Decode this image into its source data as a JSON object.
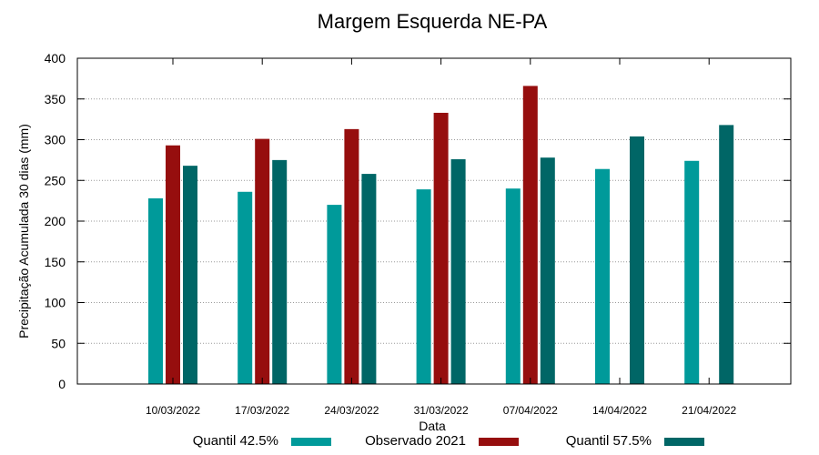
{
  "chart_data": {
    "type": "bar",
    "title": "Margem Esquerda NE-PA",
    "xlabel": "Data",
    "ylabel": "Precipitação Acumulada 30 dias (mm)",
    "ylim": [
      0,
      400
    ],
    "yticks": [
      0,
      50,
      100,
      150,
      200,
      250,
      300,
      350,
      400
    ],
    "grid": true,
    "legend_position": "bottom",
    "categories": [
      "10/03/2022",
      "17/03/2022",
      "24/03/2022",
      "31/03/2022",
      "07/04/2022",
      "14/04/2022",
      "21/04/2022"
    ],
    "series": [
      {
        "name": "Quantil 42.5%",
        "color": "#009a9a",
        "values": [
          228,
          236,
          220,
          239,
          240,
          264,
          274
        ]
      },
      {
        "name": "Observado 2021",
        "color": "#960e0e",
        "values": [
          293,
          301,
          313,
          333,
          366,
          null,
          null
        ]
      },
      {
        "name": "Quantil 57.5%",
        "color": "#006666",
        "values": [
          268,
          275,
          258,
          276,
          278,
          304,
          318
        ]
      }
    ]
  }
}
